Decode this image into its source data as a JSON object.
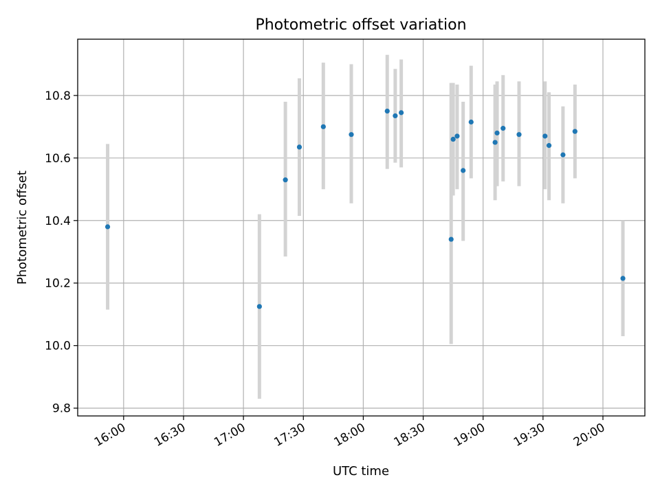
{
  "chart_data": {
    "type": "scatter",
    "title": "Photometric offset variation",
    "xlabel": "UTC time",
    "ylabel": "Photometric offset",
    "x_unit": "UTC time (HH:MM)",
    "xlim": [
      "15:37",
      "20:21"
    ],
    "ylim": [
      9.775,
      10.98
    ],
    "grid": true,
    "x_ticks": [
      "16:00",
      "16:30",
      "17:00",
      "17:30",
      "18:00",
      "18:30",
      "19:00",
      "19:30",
      "20:00"
    ],
    "y_ticks": [
      9.8,
      10.0,
      10.2,
      10.4,
      10.6,
      10.8
    ],
    "point_color": "#1f77b4",
    "errorbar_color": "#d3d3d3",
    "series": [
      {
        "points": [
          {
            "x": "15:52",
            "y": 10.38,
            "ylow": 10.115,
            "yhigh": 10.645
          },
          {
            "x": "17:08",
            "y": 10.125,
            "ylow": 9.83,
            "yhigh": 10.42
          },
          {
            "x": "17:21",
            "y": 10.53,
            "ylow": 10.285,
            "yhigh": 10.78
          },
          {
            "x": "17:28",
            "y": 10.635,
            "ylow": 10.415,
            "yhigh": 10.855
          },
          {
            "x": "17:40",
            "y": 10.7,
            "ylow": 10.5,
            "yhigh": 10.905
          },
          {
            "x": "17:54",
            "y": 10.675,
            "ylow": 10.455,
            "yhigh": 10.9
          },
          {
            "x": "18:12",
            "y": 10.75,
            "ylow": 10.565,
            "yhigh": 10.93
          },
          {
            "x": "18:16",
            "y": 10.735,
            "ylow": 10.585,
            "yhigh": 10.885
          },
          {
            "x": "18:19",
            "y": 10.745,
            "ylow": 10.57,
            "yhigh": 10.915
          },
          {
            "x": "18:44",
            "y": 10.34,
            "ylow": 10.005,
            "yhigh": 10.84
          },
          {
            "x": "18:45",
            "y": 10.66,
            "ylow": 10.48,
            "yhigh": 10.84
          },
          {
            "x": "18:47",
            "y": 10.67,
            "ylow": 10.5,
            "yhigh": 10.835
          },
          {
            "x": "18:50",
            "y": 10.56,
            "ylow": 10.335,
            "yhigh": 10.78
          },
          {
            "x": "18:54",
            "y": 10.715,
            "ylow": 10.535,
            "yhigh": 10.895
          },
          {
            "x": "19:06",
            "y": 10.65,
            "ylow": 10.465,
            "yhigh": 10.835
          },
          {
            "x": "19:07",
            "y": 10.68,
            "ylow": 10.51,
            "yhigh": 10.845
          },
          {
            "x": "19:10",
            "y": 10.695,
            "ylow": 10.525,
            "yhigh": 10.865
          },
          {
            "x": "19:18",
            "y": 10.675,
            "ylow": 10.51,
            "yhigh": 10.845
          },
          {
            "x": "19:31",
            "y": 10.67,
            "ylow": 10.5,
            "yhigh": 10.845
          },
          {
            "x": "19:33",
            "y": 10.64,
            "ylow": 10.465,
            "yhigh": 10.81
          },
          {
            "x": "19:40",
            "y": 10.61,
            "ylow": 10.455,
            "yhigh": 10.765
          },
          {
            "x": "19:46",
            "y": 10.685,
            "ylow": 10.535,
            "yhigh": 10.835
          },
          {
            "x": "20:10",
            "y": 10.215,
            "ylow": 10.03,
            "yhigh": 10.4
          }
        ]
      }
    ]
  }
}
